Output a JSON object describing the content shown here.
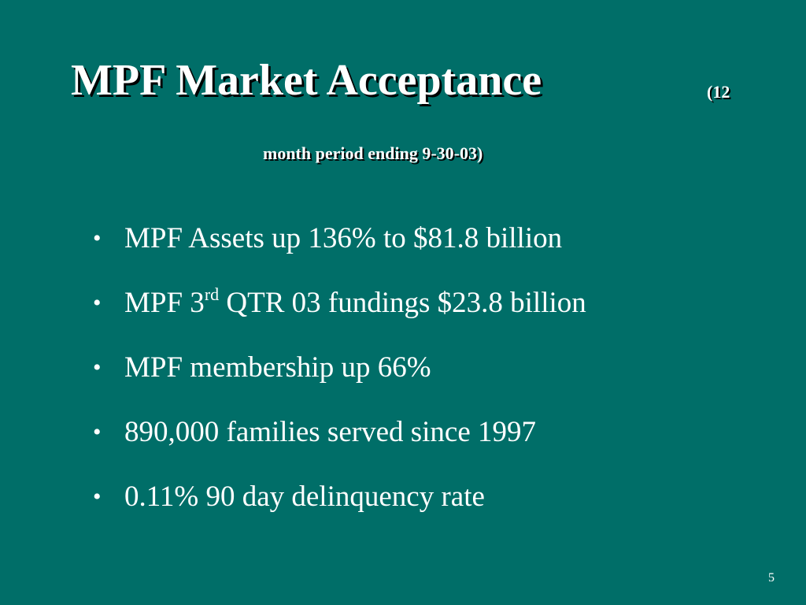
{
  "slide": {
    "title": "MPF Market Acceptance",
    "title_note": "(12",
    "subtitle": "month period ending 9-30-03)",
    "page_number": "5",
    "background_color": "#006E68",
    "text_color": "#FFFFFF"
  },
  "bullets": [
    {
      "text": "MPF Assets up 136% to $81.8 billion"
    },
    {
      "prefix": "MPF 3",
      "superscript": "rd",
      "suffix": " QTR 03 fundings $23.8 billion"
    },
    {
      "text": "MPF membership up 66%"
    },
    {
      "text": "890,000 families served since 1997"
    },
    {
      "text": "0.11% 90 day delinquency rate"
    }
  ],
  "bullet_symbol": "•"
}
